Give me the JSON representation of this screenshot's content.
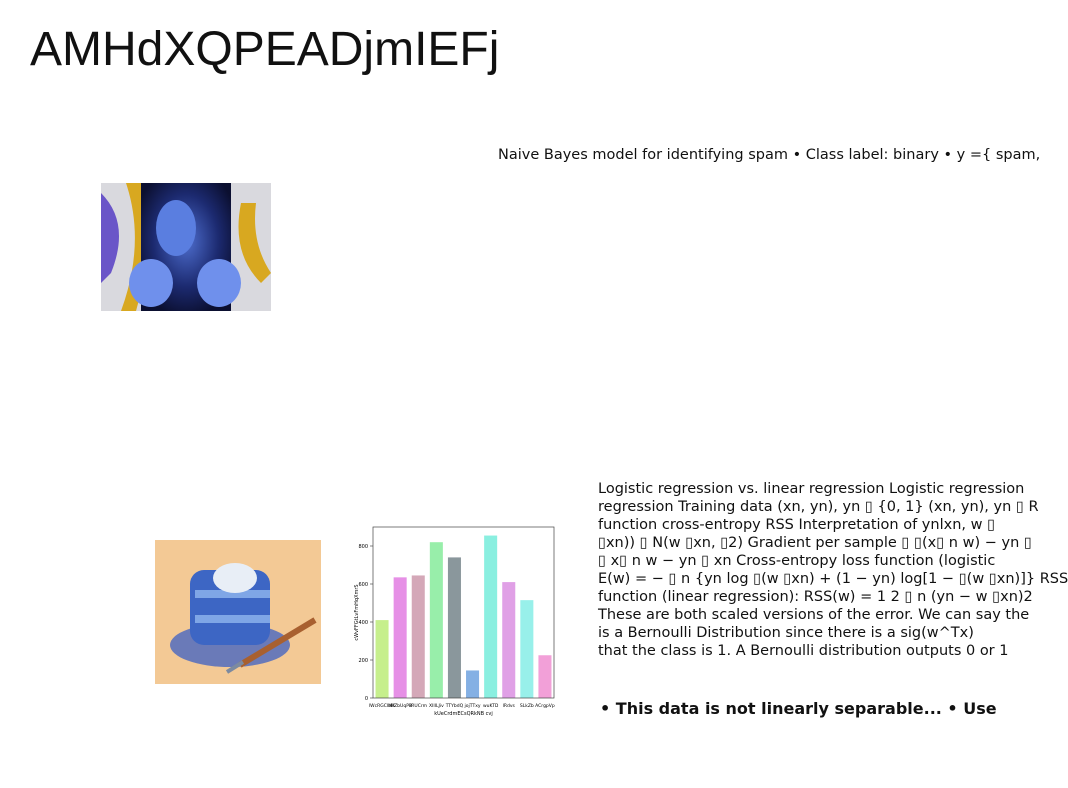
{
  "title": "AMHdXQPEADjmIEFj",
  "intro": "Naive Bayes model for identifying spam • Class label: binary • y ={ spam,",
  "body": [
    "Logistic regression vs. linear regression Logistic regression",
    "regression Training data (xn, yn), yn ▯ {0, 1} (xn, yn), yn ▯ R",
    "function cross-entropy RSS Interpretation of ynlxn, w ▯",
    "▯xn)) ▯ N(w ▯xn, ▯2) Gradient per sample ▯ ▯(x▯ n w) − yn ▯",
    "▯ x▯ n w − yn ▯ xn Cross-entropy loss function (logistic",
    "E(w) = − ▯ n {yn log ▯(w ▯xn) + (1 − yn) log[1 − ▯(w ▯xn)]} RSS",
    "function (linear regression): RSS(w) = 1 2 ▯ n (yn − w ▯xn)2",
    "These are both scaled versions of the error. We can say the",
    "is a Bernoulli Distribution since there is a sig(w^Tx)",
    "that the class is 1. A Bernoulli distribution outputs 0 or 1"
  ],
  "callout": "• This data is not linearly separable... • Use",
  "chart": {
    "type": "bar",
    "x_label": "kUeCrdmECsQRkNB cvj",
    "y_label": "cWvFFGtLvFmHqXmrS",
    "categories": [
      "lWcRGCIMX",
      "bKZbUqPB",
      "rRUCrm",
      "XIIILJiv",
      "TTYbdQ",
      "jojTTxy",
      "wuKTD",
      "lRdvs",
      "SLkZb",
      "ACrgpVp"
    ],
    "values": [
      410,
      635,
      645,
      820,
      740,
      145,
      855,
      610,
      515,
      225
    ],
    "colors": [
      "#c6ef8c",
      "#e690e6",
      "#d4a8b8",
      "#98eeaa",
      "#8a979c",
      "#84b0e4",
      "#8aefe0",
      "#e0a0e6",
      "#98f0ea",
      "#f2a0d8"
    ],
    "ylim": [
      0,
      900
    ],
    "yticks": [
      0,
      200,
      400,
      600,
      800
    ]
  }
}
